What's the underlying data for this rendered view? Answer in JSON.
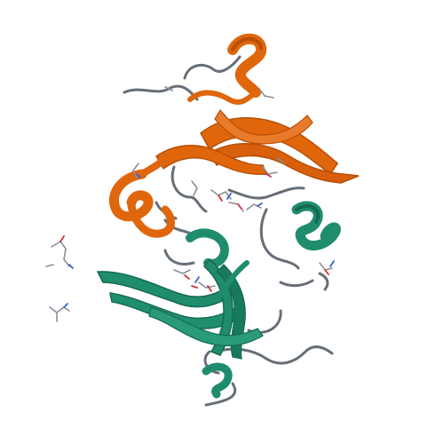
{
  "image": {
    "subject": "protein-cartoon-dimer",
    "background": "#ffffff"
  },
  "colors": {
    "chain_a": "#e0660c",
    "chain_a_dark": "#b84e06",
    "chain_b": "#1f8c6e",
    "chain_b_dark": "#146a52",
    "loop": "#666f78",
    "ligand_gray": "#8a8f96",
    "ligand_red": "#d0323a",
    "ligand_blue": "#3a5fd0"
  }
}
